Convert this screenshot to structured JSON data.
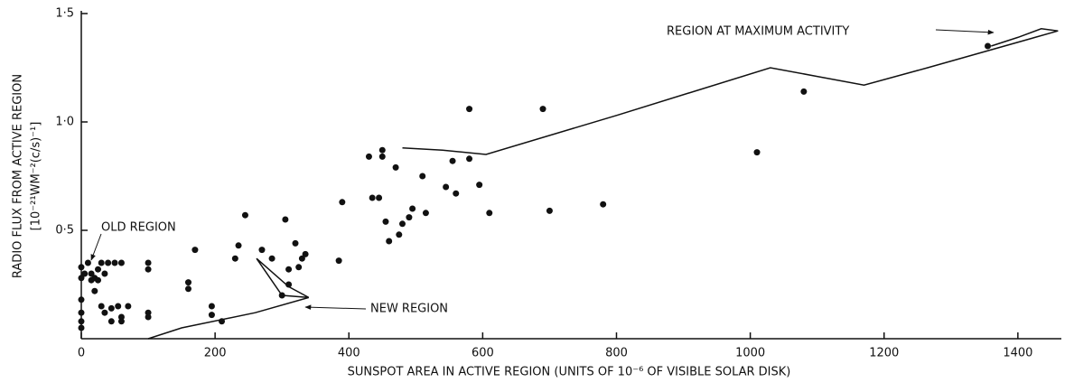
{
  "chart_data": {
    "type": "scatter",
    "x_label": "SUNSPOT AREA IN ACTIVE REGION (UNITS OF 10⁻⁶ OF VISIBLE SOLAR DISK)",
    "y_label": [
      "RADIO FLUX FROM ACTIVE REGION",
      "[10⁻²¹WM⁻²(c/s)⁻¹]"
    ],
    "annotations": [
      "OLD REGION",
      "NEW REGION",
      "REGION AT MAXIMUM ACTIVITY"
    ],
    "color": "#111111",
    "xlim": [
      0,
      1465
    ],
    "ylim": [
      0,
      1.5
    ],
    "xticks": [
      0,
      200,
      400,
      600,
      800,
      1000,
      1200,
      1400
    ],
    "yticks": [
      {
        "value": 0.5,
        "label": "0·5"
      },
      {
        "value": 1.0,
        "label": "1·0"
      },
      {
        "value": 1.5,
        "label": "1·5"
      }
    ],
    "points": {
      "x": [
        0,
        0,
        0,
        0,
        0,
        0,
        5,
        10,
        15,
        20,
        25,
        30,
        35,
        40,
        50,
        60,
        20,
        30,
        35,
        45,
        55,
        60,
        70,
        45,
        60,
        15,
        25,
        100,
        100,
        100,
        100,
        160,
        160,
        170,
        195,
        195,
        210,
        230,
        235,
        245,
        270,
        285,
        300,
        305,
        320,
        325,
        330,
        335,
        310,
        310,
        385,
        390,
        430,
        435,
        445,
        450,
        450,
        455,
        460,
        470,
        475,
        480,
        490,
        495,
        510,
        515,
        545,
        555,
        560,
        580,
        580,
        595,
        610,
        690,
        700,
        780,
        1010,
        1080,
        1355
      ],
      "y": [
        0.33,
        0.28,
        0.18,
        0.12,
        0.08,
        0.05,
        0.3,
        0.35,
        0.3,
        0.28,
        0.32,
        0.35,
        0.3,
        0.35,
        0.35,
        0.35,
        0.22,
        0.15,
        0.12,
        0.14,
        0.15,
        0.1,
        0.15,
        0.08,
        0.08,
        0.27,
        0.27,
        0.35,
        0.32,
        0.12,
        0.1,
        0.26,
        0.23,
        0.41,
        0.15,
        0.11,
        0.08,
        0.37,
        0.43,
        0.57,
        0.41,
        0.37,
        0.2,
        0.55,
        0.44,
        0.33,
        0.37,
        0.39,
        0.32,
        0.25,
        0.36,
        0.63,
        0.84,
        0.65,
        0.65,
        0.87,
        0.84,
        0.54,
        0.45,
        0.79,
        0.48,
        0.53,
        0.56,
        0.6,
        0.75,
        0.58,
        0.7,
        0.82,
        0.67,
        0.83,
        1.06,
        0.71,
        0.58,
        1.06,
        0.59,
        0.62,
        0.86,
        1.14,
        1.35
      ]
    },
    "path": {
      "x": [
        100,
        150,
        260,
        340,
        300,
        262,
        310,
        340,
        410,
        480,
        540,
        605,
        800,
        1030,
        1100,
        1170,
        1265,
        1460,
        1435,
        1400,
        1360
      ],
      "y": [
        0,
        0.05,
        0.12,
        0.19,
        0.2,
        0.37,
        0.24,
        0.19,
        null,
        0.88,
        0.87,
        0.85,
        1.03,
        1.25,
        1.21,
        1.17,
        1.25,
        1.42,
        1.43,
        1.39,
        1.35
      ]
    }
  }
}
